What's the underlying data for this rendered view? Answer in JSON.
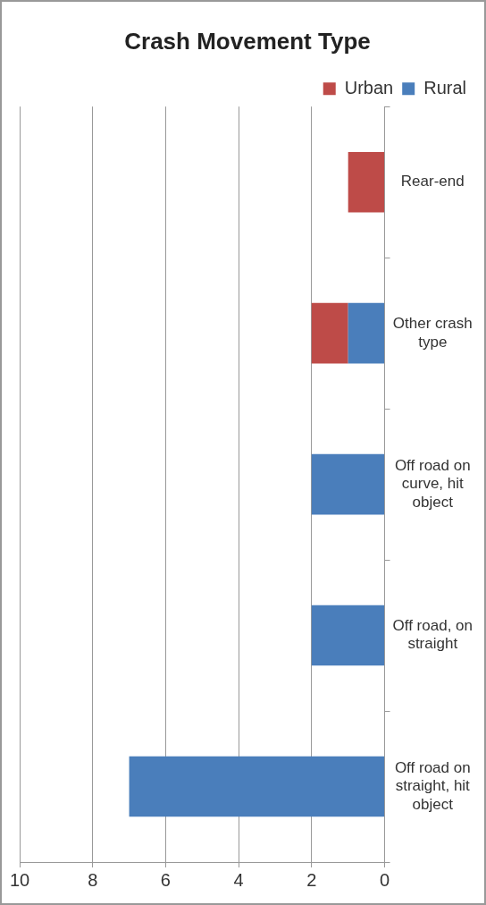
{
  "chart_data": {
    "type": "bar",
    "orientation": "horizontal",
    "title": "Crash Movement Type",
    "categories": [
      "Rear-end",
      "Other crash type",
      "Off road on curve, hit object",
      "Off road, on straight",
      "Off road on straight, hit object"
    ],
    "series": [
      {
        "name": "Rural",
        "color": "#4a7ebb",
        "values": [
          0,
          1,
          2,
          2,
          7
        ]
      },
      {
        "name": "Urban",
        "color": "#be4b48",
        "values": [
          1,
          1,
          0,
          0,
          0
        ]
      }
    ],
    "stacked": true,
    "xlim": [
      10,
      0
    ],
    "xticks": [
      10,
      8,
      6,
      4,
      2,
      0
    ],
    "grid": "x",
    "legend": "top right"
  }
}
